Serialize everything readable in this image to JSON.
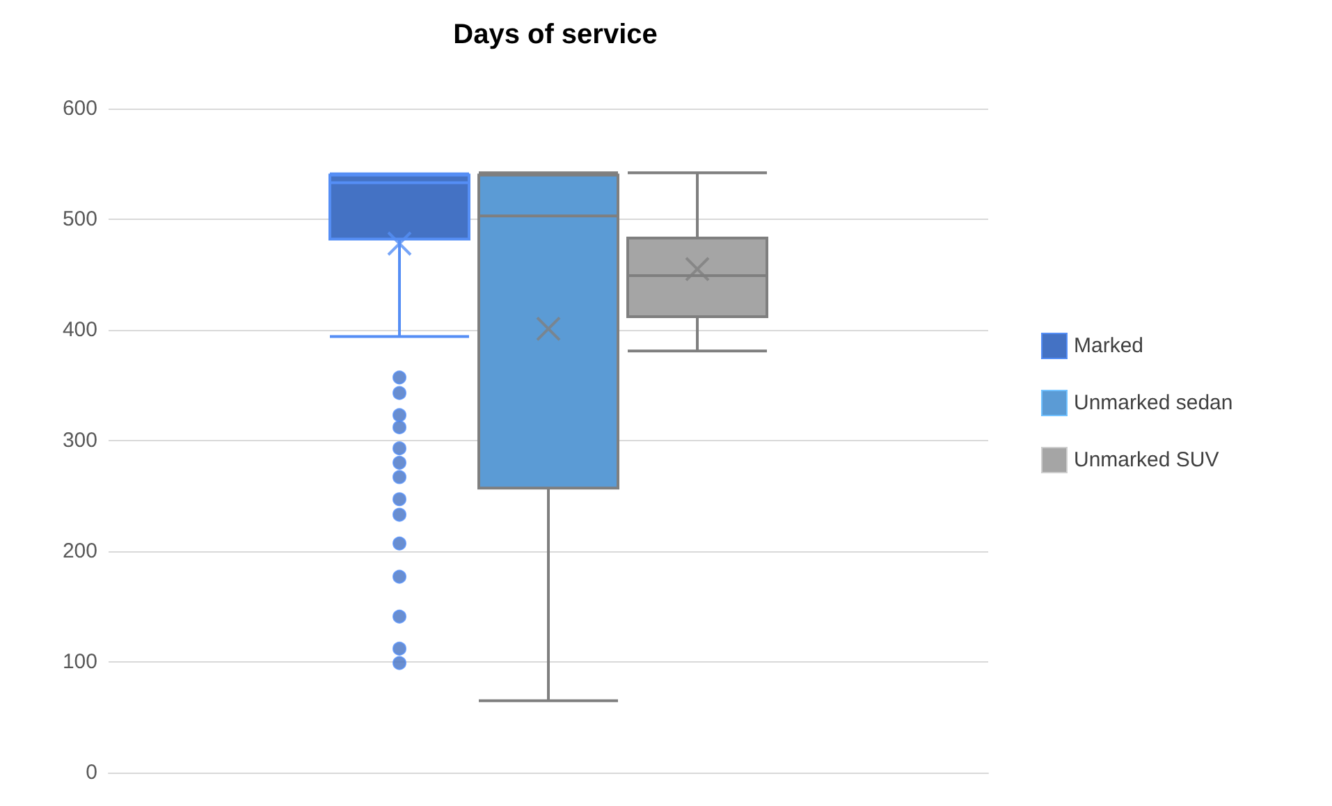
{
  "chart_data": {
    "type": "box",
    "title": "Days of service",
    "categories": [
      null
    ],
    "series": [
      {
        "name": "Marked",
        "color": "#4472c4",
        "boxes": [
          {
            "low": 394,
            "q1": 482,
            "median": 533,
            "q3": 540,
            "high": 541,
            "mean": 478,
            "outliers": [
              357,
              343,
              323,
              312,
              293,
              280,
              267,
              247,
              233,
              207,
              177,
              141,
              112,
              99
            ]
          }
        ]
      },
      {
        "name": "Unmarked sedan",
        "color": "#5b9bd5",
        "boxes": [
          {
            "low": 65,
            "q1": 257,
            "median": 503,
            "q3": 540,
            "high": 542,
            "mean": 401
          }
        ]
      },
      {
        "name": "Unmarked SUV",
        "color": "#a5a5a5",
        "boxes": [
          {
            "low": 381,
            "q1": 412,
            "median": 449,
            "q3": 483,
            "high": 542,
            "mean": 455
          }
        ]
      }
    ],
    "ylim": [
      0,
      600
    ],
    "yticks": [
      0,
      100,
      200,
      300,
      400,
      500,
      600
    ],
    "grid": "y",
    "legend": "right"
  }
}
